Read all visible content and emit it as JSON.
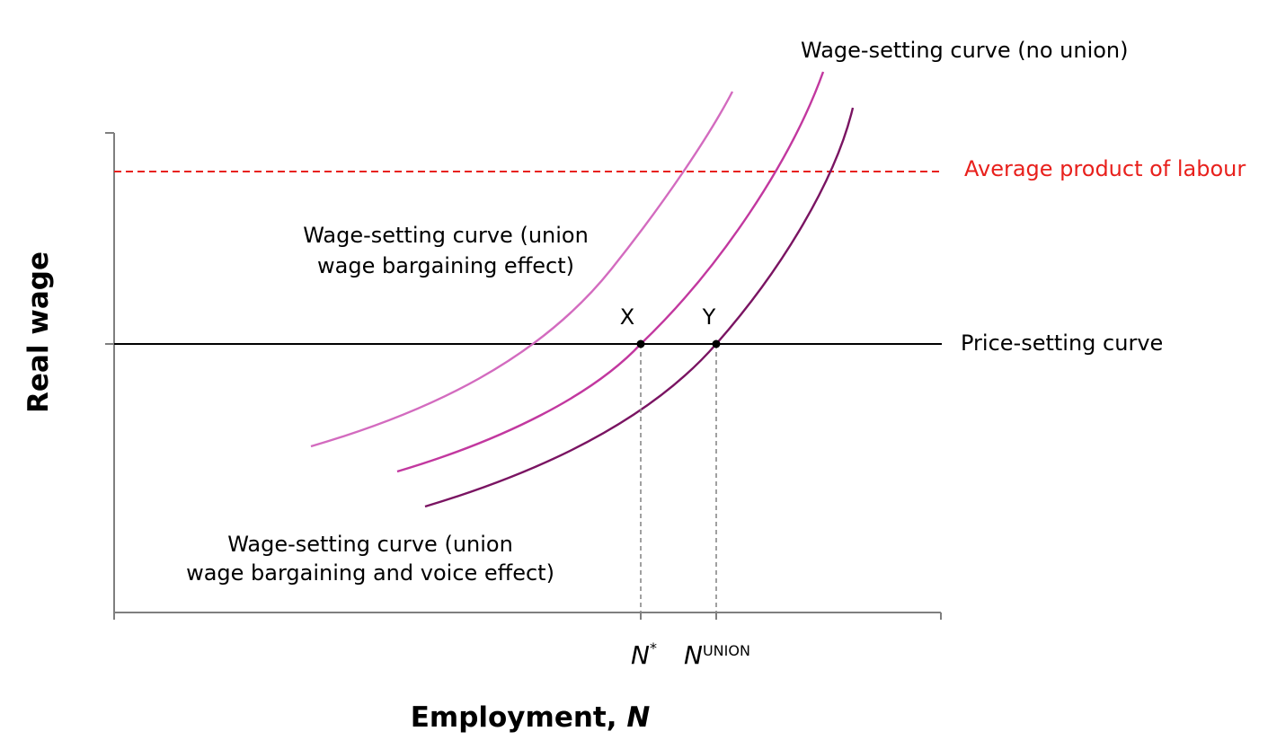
{
  "chart_data": {
    "type": "line",
    "xlabel": "Employment,",
    "xlabel_var": "N",
    "ylabel": "Real wage",
    "grid": false,
    "colors": {
      "axis": "#7f7f7f",
      "price_setting": "#000000",
      "average_product": "#e8201c",
      "wage_union_bargaining": "#d36bbf",
      "wage_no_union": "#c2389f",
      "wage_union_voice": "#7a1462",
      "guide": "#888888"
    },
    "horizontal_lines": [
      {
        "name": "Price-setting curve",
        "label": "Price-setting curve",
        "style": "solid"
      },
      {
        "name": "Average product of labour",
        "label": "Average product of labour",
        "style": "dashed"
      }
    ],
    "series": [
      {
        "label_line1": "Wage-setting curve (union",
        "label_line2": "wage bargaining effect)"
      },
      {
        "label": "Wage-setting curve (no union)"
      },
      {
        "label_line1": "Wage-setting curve (union",
        "label_line2": "wage bargaining and voice effect)"
      }
    ],
    "points": [
      {
        "label": "X",
        "tick_label": "N",
        "tick_sup": "*"
      },
      {
        "label": "Y",
        "tick_label": "N",
        "tick_sup": "UNION"
      }
    ]
  }
}
